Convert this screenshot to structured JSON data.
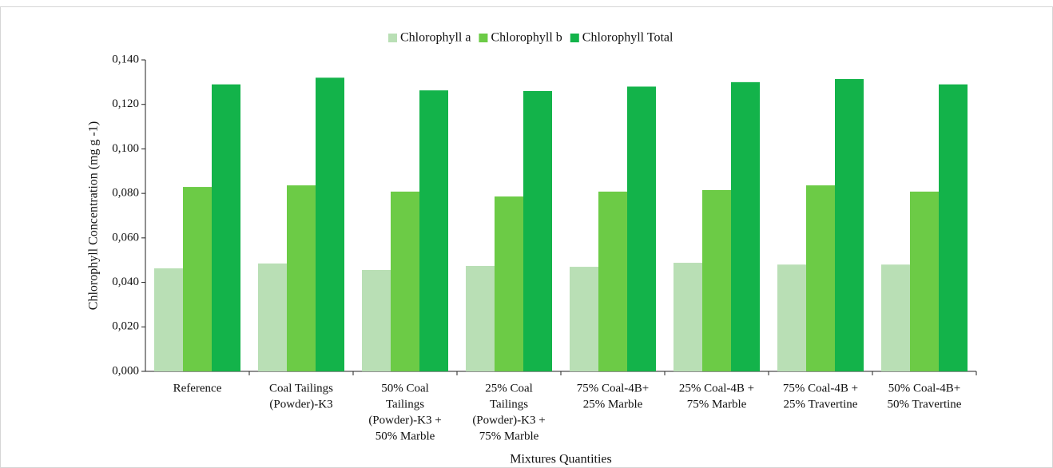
{
  "chart_data": {
    "type": "bar",
    "x_label": "Mixtures Quantities",
    "y_label": "Chlorophyll Concentration (mg g -1)",
    "categories": [
      [
        "Reference"
      ],
      [
        "Coal Tailings",
        "(Powder)-K3"
      ],
      [
        "50% Coal",
        "Tailings",
        "(Powder)-K3 +",
        "50% Marble"
      ],
      [
        "25% Coal",
        "Tailings",
        "(Powder)-K3 +",
        "75% Marble"
      ],
      [
        "75% Coal-4B+",
        "25% Marble"
      ],
      [
        "25% Coal-4B +",
        "75% Marble"
      ],
      [
        "75% Coal-4B +",
        "25% Travertine"
      ],
      [
        "50% Coal-4B+",
        "50% Travertine"
      ]
    ],
    "series": [
      {
        "name": "Chlorophyll a",
        "color": "#b9dfb5",
        "values": [
          0.0463,
          0.0485,
          0.0456,
          0.0474,
          0.047,
          0.0488,
          0.048,
          0.048
        ]
      },
      {
        "name": "Chlorophyll b",
        "color": "#6ccb46",
        "values": [
          0.0829,
          0.0836,
          0.0808,
          0.0786,
          0.0808,
          0.0815,
          0.0836,
          0.0808
        ]
      },
      {
        "name": "Chlorophyll Total",
        "color": "#13b34a",
        "values": [
          0.129,
          0.132,
          0.1263,
          0.126,
          0.128,
          0.13,
          0.1314,
          0.129
        ]
      }
    ],
    "ylim": [
      0,
      0.14
    ],
    "yticks": [
      {
        "value": 0,
        "label": "0,000"
      },
      {
        "value": 0.02,
        "label": "0,020"
      },
      {
        "value": 0.04,
        "label": "0,040"
      },
      {
        "value": 0.06,
        "label": "0,060"
      },
      {
        "value": 0.08,
        "label": "0,080"
      },
      {
        "value": 0.1,
        "label": "0,100"
      },
      {
        "value": 0.12,
        "label": "0,120"
      },
      {
        "value": 0.14,
        "label": "0,140"
      }
    ],
    "legend": "top"
  }
}
